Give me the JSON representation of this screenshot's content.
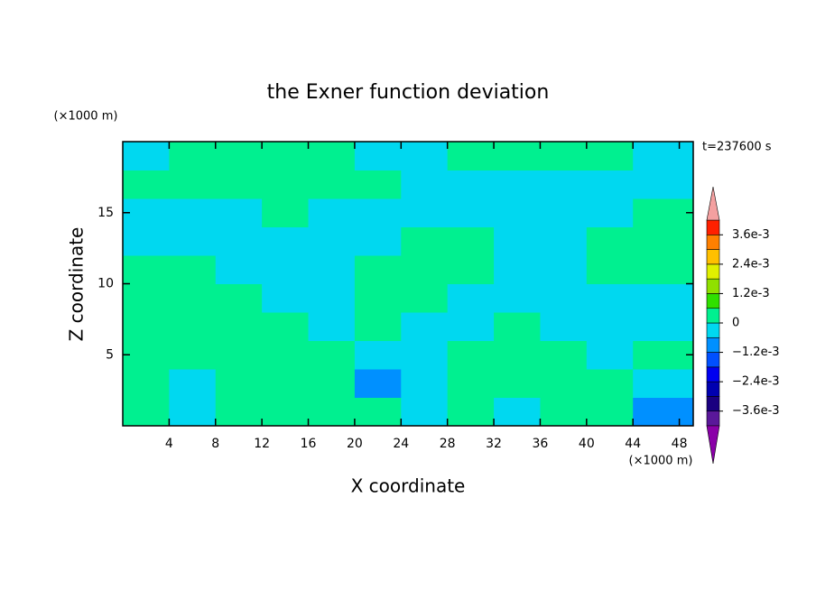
{
  "chart_data": {
    "type": "contourf",
    "title": "the Exner function deviation",
    "x_label": "X coordinate",
    "y_label": "Z coordinate",
    "x_unit": "(×1000 m)",
    "y_unit": "(×1000 m)",
    "time_label": "t=237600 s",
    "xlim": [
      0,
      49.2
    ],
    "ylim": [
      0,
      20
    ],
    "xticks": [
      4,
      8,
      12,
      16,
      20,
      24,
      28,
      32,
      36,
      40,
      44,
      48
    ],
    "yticks": [
      5,
      10,
      15
    ],
    "x": [
      2,
      6,
      10,
      14,
      18,
      22,
      26,
      30,
      34,
      38,
      42,
      46
    ],
    "y": [
      1,
      3,
      5,
      7,
      9,
      11,
      13,
      15,
      17,
      19
    ],
    "z": [
      [
        0.0003,
        -0.0003,
        0.0003,
        0.0003,
        0.0003,
        0.0003,
        -0.0003,
        0.0003,
        -0.0003,
        0.0003,
        0.0003,
        -0.0009
      ],
      [
        0.0003,
        -0.0003,
        0.0003,
        0.0003,
        0.0003,
        -0.0009,
        -0.0003,
        0.0003,
        0.0003,
        0.0003,
        0.0003,
        -0.0003
      ],
      [
        0.0003,
        0.0003,
        0.0003,
        0.0003,
        0.0003,
        -0.0003,
        -0.0003,
        0.0003,
        0.0003,
        0.0003,
        -0.0003,
        0.0003
      ],
      [
        0.0003,
        0.0003,
        0.0003,
        0.0003,
        -0.0003,
        0.0003,
        -0.0003,
        -0.0003,
        0.0003,
        -0.0003,
        -0.0003,
        -0.0003
      ],
      [
        0.0003,
        0.0003,
        0.0003,
        -0.0003,
        -0.0003,
        0.0003,
        0.0003,
        -0.0003,
        -0.0003,
        -0.0003,
        -0.0003,
        -0.0003
      ],
      [
        0.0003,
        0.0003,
        -0.0003,
        -0.0003,
        -0.0003,
        0.0003,
        0.0003,
        0.0003,
        -0.0003,
        -0.0003,
        0.0003,
        0.0003
      ],
      [
        -0.0003,
        -0.0003,
        -0.0003,
        -0.0003,
        -0.0003,
        -0.0003,
        0.0003,
        0.0003,
        -0.0003,
        -0.0003,
        0.0003,
        0.0003
      ],
      [
        -0.0003,
        -0.0003,
        -0.0003,
        0.0003,
        -0.0003,
        -0.0003,
        -0.0003,
        -0.0003,
        -0.0003,
        -0.0003,
        -0.0003,
        0.0003
      ],
      [
        0.0003,
        0.0003,
        0.0003,
        0.0003,
        0.0003,
        0.0003,
        -0.0003,
        -0.0003,
        -0.0003,
        -0.0003,
        -0.0003,
        -0.0003
      ],
      [
        -0.0003,
        0.0003,
        0.0003,
        0.0003,
        0.0003,
        -0.0003,
        -0.0003,
        0.0003,
        0.0003,
        0.0003,
        0.0003,
        -0.0003
      ]
    ],
    "levels": [
      -0.0042,
      -0.0036,
      -0.003,
      -0.0024,
      -0.0018,
      -0.0012,
      -0.0006,
      0,
      0.0006,
      0.0012,
      0.0018,
      0.0024,
      0.003,
      0.0036,
      0.0042
    ],
    "colors": [
      "#5a189a",
      "#1a0080",
      "#0000b0",
      "#0000f0",
      "#0050ff",
      "#0090ff",
      "#00d8f0",
      "#00f090",
      "#30e000",
      "#90e000",
      "#e0f000",
      "#ffc000",
      "#ff8000",
      "#ff2000"
    ],
    "extend_colors": [
      "#8a00a8",
      "#f4a0a0"
    ],
    "colorbar_ticks": [
      {
        "value": 0.0036,
        "label": "3.6e-3"
      },
      {
        "value": 0.0024,
        "label": "2.4e-3"
      },
      {
        "value": 0.0012,
        "label": "1.2e-3"
      },
      0,
      {
        "value": -0.0012,
        "label": "−1.2e-3"
      },
      {
        "value": -0.0024,
        "label": "−2.4e-3"
      },
      {
        "value": -0.0036,
        "label": "−3.6e-3"
      }
    ]
  }
}
